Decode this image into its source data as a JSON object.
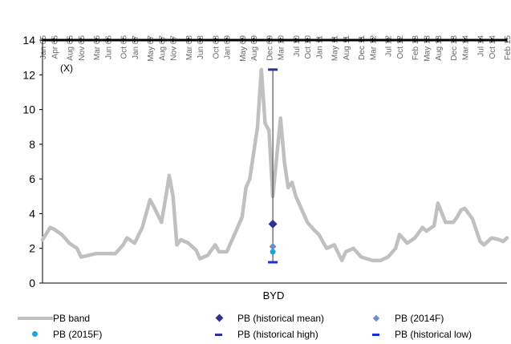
{
  "chart_data": {
    "type": "line",
    "title": "",
    "unit_label": "(X)",
    "category_label": "BYD",
    "xlabel": "",
    "ylabel": "",
    "ylim": [
      0,
      14
    ],
    "yticks": [
      "0",
      "2",
      "4",
      "6",
      "8",
      "10",
      "12",
      "14"
    ],
    "x_tick_labels": [
      "Jan 05",
      "Apr 05",
      "Aug 05",
      "Nov 05",
      "Mar 06",
      "Jun 06",
      "Oct 06",
      "Jan 07",
      "May 07",
      "Aug 07",
      "Nov 07",
      "Mar 08",
      "Jun 08",
      "Oct 08",
      "Jan 09",
      "May 09",
      "Aug 09",
      "Dec 09",
      "Mar 10",
      "Jul 10",
      "Oct 10",
      "Jan 11",
      "May 11",
      "Aug 11",
      "Dec 11",
      "Mar 12",
      "Jul 12",
      "Oct 12",
      "Feb 13",
      "May 13",
      "Aug 13",
      "Dec 13",
      "Mar 14",
      "Jul 14",
      "Oct 14",
      "Feb 15"
    ],
    "series": [
      {
        "name": "PB band",
        "color": "#c0c0c0",
        "x": [
          "Jan 05",
          "Mar 05",
          "Apr 05",
          "Jun 05",
          "Aug 05",
          "Oct 05",
          "Nov 05",
          "Jan 06",
          "Mar 06",
          "May 06",
          "Jun 06",
          "Aug 06",
          "Oct 06",
          "Nov 06",
          "Jan 07",
          "Mar 07",
          "May 07",
          "Jun 07",
          "Aug 07",
          "Sep 07",
          "Oct 07",
          "Nov 07",
          "Dec 07",
          "Jan 08",
          "Mar 08",
          "May 08",
          "Jun 08",
          "Aug 08",
          "Oct 08",
          "Nov 08",
          "Jan 09",
          "Mar 09",
          "May 09",
          "Jun 09",
          "Jul 09",
          "Aug 09",
          "Sep 09",
          "Oct 09",
          "Nov 09",
          "Dec 09",
          "Jan 10",
          "Mar 10",
          "Apr 10",
          "May 10",
          "Jun 10",
          "Jul 10",
          "Aug 10",
          "Oct 10",
          "Dec 10",
          "Jan 11",
          "Mar 11",
          "May 11",
          "Jul 11",
          "Aug 11",
          "Oct 11",
          "Dec 11",
          "Mar 12",
          "May 12",
          "Jul 12",
          "Sep 12",
          "Oct 12",
          "Dec 12",
          "Feb 13",
          "Apr 13",
          "May 13",
          "Jul 13",
          "Aug 13",
          "Oct 13",
          "Dec 13",
          "Jan 14",
          "Feb 14",
          "Mar 14",
          "May 14",
          "Jul 14",
          "Aug 14",
          "Oct 14",
          "Dec 14",
          "Jan 15",
          "Feb 15"
        ],
        "y": [
          2.5,
          3.2,
          3.1,
          2.8,
          2.3,
          2.0,
          1.5,
          1.6,
          1.7,
          1.7,
          1.7,
          1.7,
          2.2,
          2.6,
          2.3,
          3.2,
          4.8,
          4.4,
          3.5,
          4.8,
          6.2,
          5.0,
          2.2,
          2.5,
          2.3,
          1.9,
          1.4,
          1.6,
          2.2,
          1.8,
          1.8,
          2.8,
          3.8,
          5.5,
          6.0,
          7.5,
          9.0,
          12.3,
          9.2,
          8.8,
          5.0,
          9.5,
          7.0,
          5.5,
          5.8,
          5.0,
          4.5,
          3.5,
          3.0,
          2.8,
          2.0,
          2.2,
          1.3,
          1.8,
          2.0,
          1.5,
          1.3,
          1.3,
          1.5,
          2.0,
          2.8,
          2.3,
          2.6,
          3.2,
          3.0,
          3.3,
          4.6,
          3.5,
          3.5,
          3.8,
          4.2,
          4.3,
          3.7,
          2.4,
          2.2,
          2.6,
          2.5,
          2.4,
          2.6
        ]
      }
    ],
    "markers": [
      {
        "name": "PB (historical mean)",
        "x": "Jan 10",
        "value": 3.4,
        "shape": "diamond",
        "color": "#2e3192"
      },
      {
        "name": "PB (2014F)",
        "x": "Jan 10",
        "value": 2.1,
        "shape": "diamond",
        "color": "#6b8fc7"
      },
      {
        "name": "PB (2015F)",
        "x": "Jan 10",
        "value": 1.8,
        "shape": "circle",
        "color": "#1ea5e0"
      },
      {
        "name": "PB (historical high)",
        "x": "Jan 10",
        "value": 12.3,
        "shape": "dash",
        "color": "#2e3192"
      },
      {
        "name": "PB (historical low)",
        "x": "Jan 10",
        "value": 1.2,
        "shape": "dash",
        "color": "#1a2fd6"
      }
    ],
    "legend": [
      "PB band",
      "PB (historical mean)",
      "PB (2014F)",
      "PB (2015F)",
      "PB (historical high)",
      "PB (historical low)"
    ],
    "legend_position": "bottom",
    "grid": false
  }
}
